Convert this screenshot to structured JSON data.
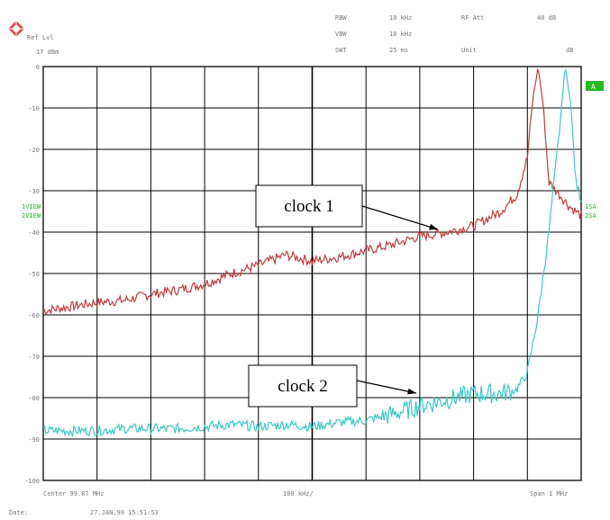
{
  "header": {
    "ref_lvl_label": "Ref Lvl",
    "ref_lvl_value": "17 dBm",
    "rbw_label": "RBW",
    "rbw_value": "10 kHz",
    "vbw_label": "VBW",
    "vbw_value": "10 kHz",
    "swt_label": "SWT",
    "swt_value": "25 ms",
    "rf_att_label": "RF Att",
    "rf_att_value": "40 dB",
    "unit_label": "Unit",
    "unit_value": "dB"
  },
  "side_labels": {
    "left_trace_1": "1VIEW",
    "left_trace_2": "2VIEW",
    "right_trace_1": "1SA",
    "right_trace_2": "2SA",
    "marker_box": "A"
  },
  "footer": {
    "center_label": "Center 99.87 MHz",
    "div_label": "100 kHz/",
    "span_label": "Span 1 MHz",
    "date_label": "Date:",
    "date_value": "27.JAN.99  15:51:53"
  },
  "annotations": {
    "clock1": "clock 1",
    "clock2": "clock 2"
  },
  "colors": {
    "series1": "#c23b3b",
    "series2": "#3cc8c8",
    "grid": "#000000",
    "marker": "#22bb22"
  },
  "chart_data": {
    "type": "line",
    "ylim": [
      -100,
      0
    ],
    "yticks": [
      0,
      -10,
      -20,
      -30,
      -40,
      -50,
      -60,
      -70,
      -80,
      -90,
      -100
    ],
    "ytick_labels": [
      "0",
      "-10",
      "-20",
      "-30",
      "-40",
      "-50",
      "-60",
      "-70",
      "-80",
      "-90",
      "-100"
    ],
    "xlim": [
      0,
      10
    ],
    "grid": true,
    "series": [
      {
        "name": "clock 1",
        "x": [
          0,
          0.5,
          1,
          1.5,
          2,
          2.5,
          3,
          3.5,
          4,
          4.5,
          5,
          5.5,
          6,
          6.5,
          7,
          7.5,
          8,
          8.5,
          8.8,
          9.0,
          9.1,
          9.2,
          9.3,
          9.4,
          9.6,
          9.8,
          10
        ],
        "y": [
          -59,
          -58,
          -57,
          -56.5,
          -55,
          -54,
          -52.5,
          -50,
          -48,
          -45.5,
          -47,
          -46,
          -44.5,
          -43,
          -41,
          -40,
          -38.5,
          -35,
          -31,
          -22,
          -8,
          0,
          -10,
          -28,
          -31,
          -34,
          -36
        ]
      },
      {
        "name": "clock 2",
        "x": [
          0,
          0.5,
          1,
          1.5,
          2,
          2.5,
          3,
          3.5,
          4,
          4.5,
          5,
          5.5,
          6,
          6.5,
          7,
          7.5,
          8,
          8.5,
          8.8,
          9.0,
          9.2,
          9.4,
          9.6,
          9.7,
          9.8,
          9.9,
          10
        ],
        "y": [
          -88,
          -88,
          -88,
          -87.5,
          -87.5,
          -87.5,
          -87,
          -86.5,
          -87,
          -86.5,
          -87,
          -86,
          -85.5,
          -84,
          -82,
          -80.5,
          -79,
          -79,
          -78,
          -74,
          -60,
          -40,
          -15,
          0,
          -8,
          -28,
          -32
        ]
      }
    ]
  }
}
